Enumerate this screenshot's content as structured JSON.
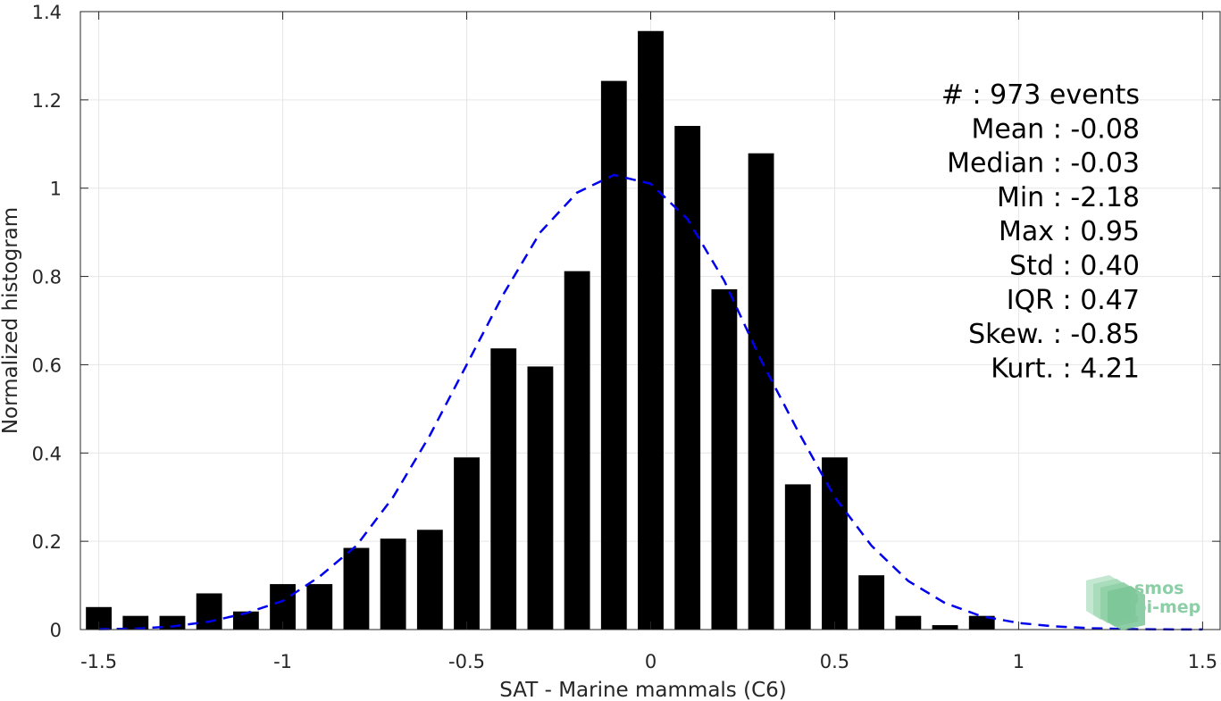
{
  "chart_data": {
    "type": "bar",
    "xlabel": "SAT - Marine mammals (C6)",
    "ylabel": "Normalized histogram",
    "xlim": [
      -1.55,
      1.55
    ],
    "ylim": [
      0,
      1.4
    ],
    "xticks": [
      -1.5,
      -1,
      -0.5,
      0,
      0.5,
      1,
      1.5
    ],
    "xtick_labels": [
      "-1.5",
      "-1",
      "-0.5",
      "0",
      "0.5",
      "1",
      "1.5"
    ],
    "yticks": [
      0,
      0.2,
      0.4,
      0.6,
      0.8,
      1,
      1.2,
      1.4
    ],
    "ytick_labels": [
      "0",
      "0.2",
      "0.4",
      "0.6",
      "0.8",
      "1",
      "1.2",
      "1.4"
    ],
    "grid": true,
    "bin_width": 0.1,
    "bins": {
      "x": [
        -1.5,
        -1.4,
        -1.3,
        -1.2,
        -1.1,
        -1.0,
        -0.9,
        -0.8,
        -0.7,
        -0.6,
        -0.5,
        -0.4,
        -0.3,
        -0.2,
        -0.1,
        0.0,
        0.1,
        0.2,
        0.3,
        0.4,
        0.5,
        0.6,
        0.7,
        0.8,
        0.9
      ],
      "values": [
        0.051,
        0.031,
        0.031,
        0.082,
        0.041,
        0.103,
        0.103,
        0.185,
        0.206,
        0.226,
        0.39,
        0.637,
        0.596,
        0.812,
        1.243,
        1.356,
        1.141,
        0.771,
        1.079,
        0.329,
        0.39,
        0.123,
        0.031,
        0.01,
        0.031
      ],
      "color": "#000000"
    },
    "fit": {
      "style": "dashed",
      "color": "#0000ee",
      "x": [
        -1.5,
        -1.4,
        -1.3,
        -1.2,
        -1.1,
        -1.0,
        -0.9,
        -0.8,
        -0.7,
        -0.6,
        -0.5,
        -0.4,
        -0.3,
        -0.2,
        -0.1,
        0.0,
        0.1,
        0.2,
        0.3,
        0.4,
        0.5,
        0.6,
        0.7,
        0.8,
        0.9,
        1.0,
        1.1,
        1.2,
        1.3,
        1.4,
        1.5
      ],
      "y": [
        0.001,
        0.002,
        0.007,
        0.018,
        0.037,
        0.065,
        0.12,
        0.19,
        0.3,
        0.44,
        0.6,
        0.76,
        0.9,
        0.99,
        1.03,
        1.01,
        0.93,
        0.79,
        0.61,
        0.45,
        0.3,
        0.19,
        0.11,
        0.06,
        0.03,
        0.015,
        0.007,
        0.003,
        0.001,
        0.0005,
        0.0002
      ]
    },
    "annotation": {
      "placement": "top-right",
      "lines": [
        "#  : 973 events",
        "Mean : -0.08",
        "Median : -0.03",
        "Min : -2.18",
        "Max : 0.95",
        "Std : 0.40",
        "IQR : 0.47",
        "Skew. : -0.85",
        "Kurt. : 4.21"
      ]
    }
  },
  "logo": {
    "line1": "smos",
    "line2": "pi-mep",
    "color": "#8ccfa6",
    "placement": "bottom-right"
  }
}
